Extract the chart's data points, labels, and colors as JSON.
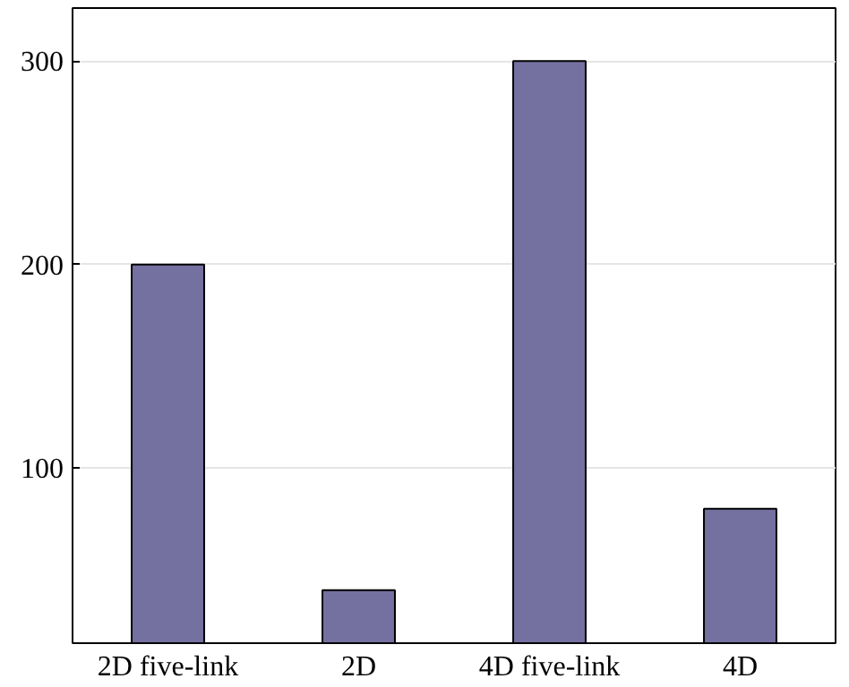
{
  "chart_data": {
    "type": "bar",
    "categories": [
      "2D five-link",
      "2D",
      "4D five-link",
      "4D"
    ],
    "values": [
      200,
      40,
      300,
      80
    ],
    "color": "#7470a0",
    "ylim": [
      14,
      326
    ],
    "yticks": [
      100,
      200,
      300
    ],
    "grid": "y"
  }
}
